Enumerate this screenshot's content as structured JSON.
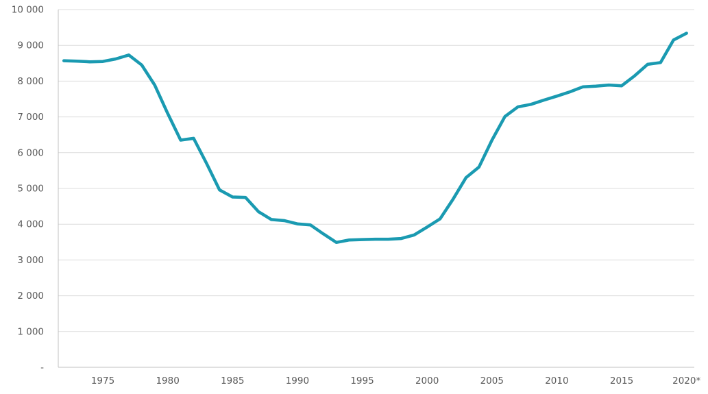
{
  "chart_data": {
    "type": "line",
    "title": "",
    "xlabel": "",
    "ylabel": "",
    "ylim": [
      0,
      10000
    ],
    "grid": "horizontal",
    "legend_position": "none",
    "line_color": "#1a9ab1",
    "grid_color": "#dcdcdc",
    "axis_color": "#c0c0c0",
    "label_color": "#595959",
    "years": [
      1972,
      1973,
      1974,
      1975,
      1976,
      1977,
      1978,
      1979,
      1980,
      1981,
      1982,
      1983,
      1984,
      1985,
      1986,
      1987,
      1988,
      1989,
      1990,
      1991,
      1992,
      1993,
      1994,
      1995,
      1996,
      1997,
      1998,
      1999,
      2000,
      2001,
      2002,
      2003,
      2004,
      2005,
      2006,
      2007,
      2008,
      2009,
      2010,
      2011,
      2012,
      2013,
      2014,
      2015,
      2016,
      2017,
      2018,
      2019,
      2020
    ],
    "values": [
      8570,
      8560,
      8540,
      8550,
      8620,
      8730,
      8450,
      7890,
      7100,
      6350,
      6400,
      5700,
      4960,
      4760,
      4750,
      4350,
      4130,
      4100,
      4010,
      3980,
      3730,
      3490,
      3560,
      3570,
      3580,
      3580,
      3600,
      3700,
      3920,
      4150,
      4700,
      5300,
      5600,
      6350,
      7010,
      7280,
      7350,
      7470,
      7580,
      7700,
      7840,
      7860,
      7890,
      7870,
      8150,
      8470,
      8520,
      9150,
      9340
    ],
    "x_tick_years": [
      1975,
      1980,
      1985,
      1990,
      1995,
      2000,
      2005,
      2010,
      2015,
      2020
    ],
    "x_tick_labels": [
      "1975",
      "1980",
      "1985",
      "1990",
      "1995",
      "2000",
      "2005",
      "2010",
      "2015",
      "2020*"
    ],
    "y_tick_values": [
      0,
      1000,
      2000,
      3000,
      4000,
      5000,
      6000,
      7000,
      8000,
      9000,
      10000
    ],
    "y_tick_labels": [
      "-",
      "1 000",
      "2 000",
      "3 000",
      "4 000",
      "5 000",
      "6 000",
      "7 000",
      "8 000",
      "9 000",
      "10 000"
    ]
  }
}
